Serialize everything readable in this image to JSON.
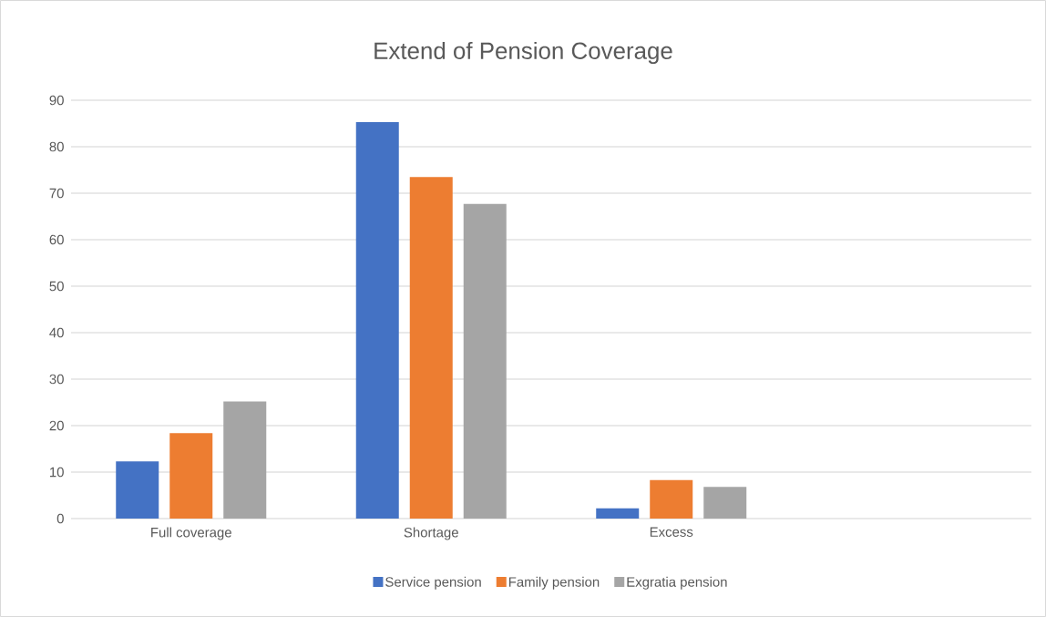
{
  "chart_data": {
    "type": "bar",
    "title": "Extend of Pension Coverage",
    "categories": [
      "Full coverage",
      "Shortage",
      "Excess",
      null
    ],
    "series": [
      {
        "name": "Service pension",
        "color": "#4472c4",
        "values": [
          12.3,
          85.3,
          2.2,
          null
        ]
      },
      {
        "name": "Family pension",
        "color": "#ed7d31",
        "values": [
          18.4,
          73.5,
          8.3,
          null
        ]
      },
      {
        "name": "Exgratia pension",
        "color": "#a5a5a5",
        "values": [
          25.2,
          67.7,
          6.8,
          null
        ]
      }
    ],
    "ylim": [
      0,
      90
    ],
    "yticks": [
      0,
      10,
      20,
      30,
      40,
      50,
      60,
      70,
      80,
      90
    ],
    "grid": "y",
    "legend": "bottom"
  }
}
